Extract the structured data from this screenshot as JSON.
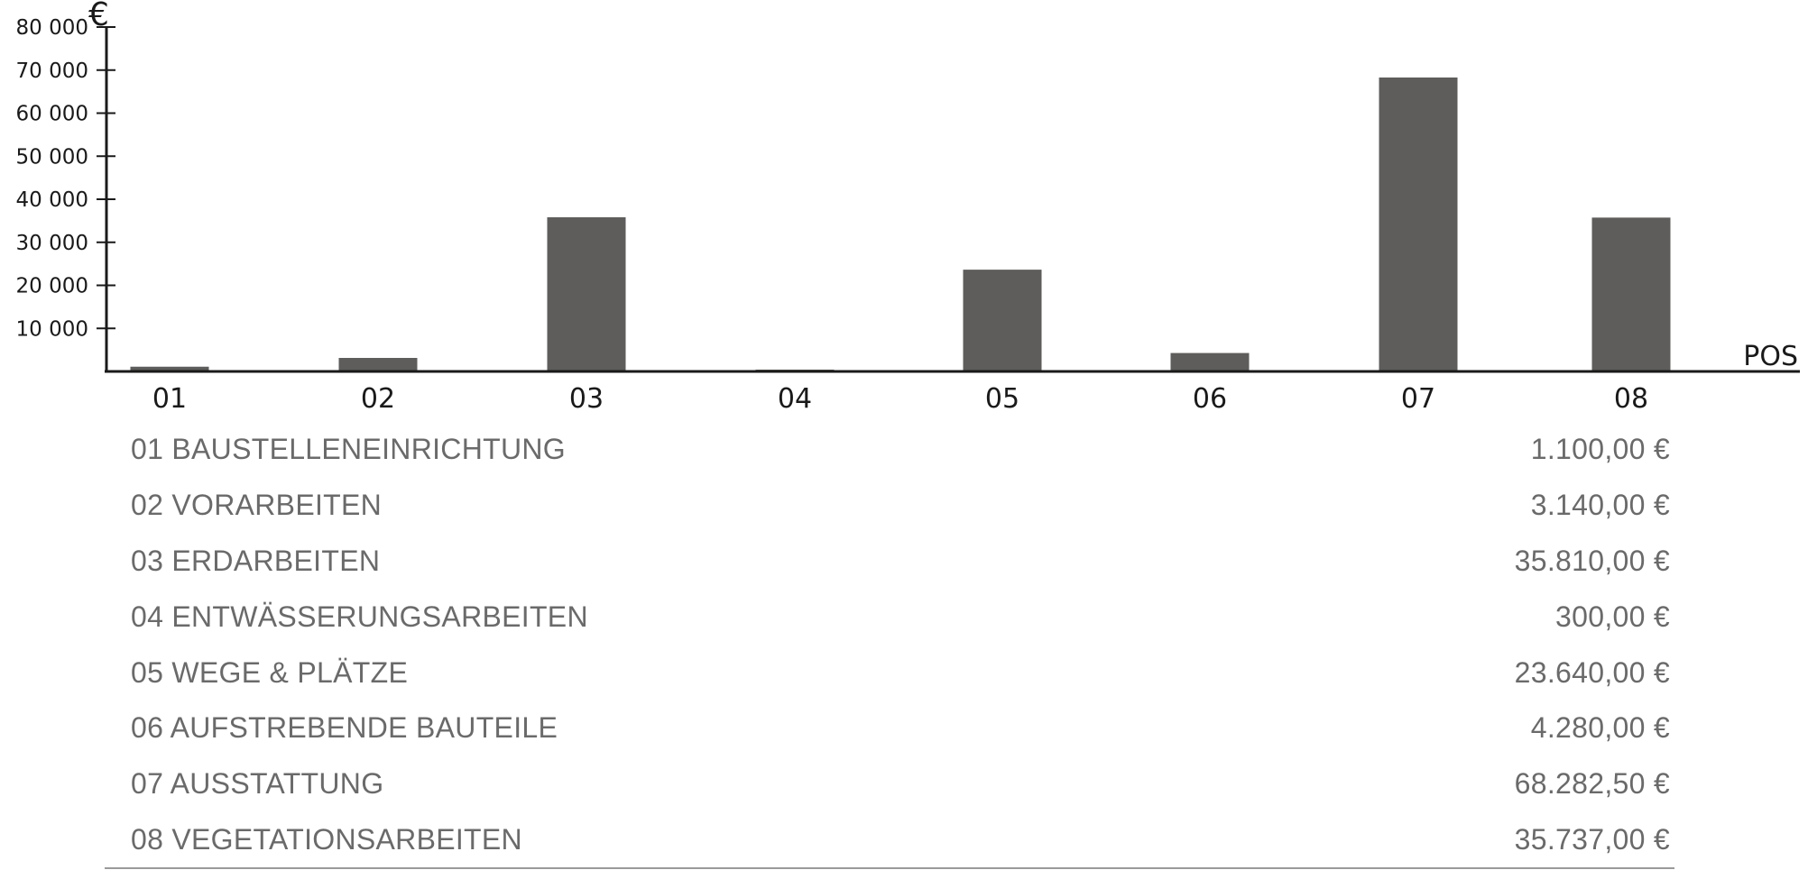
{
  "chart_data": {
    "type": "bar",
    "y_unit": "€",
    "x_axis_label": "POS",
    "categories": [
      "01",
      "02",
      "03",
      "04",
      "05",
      "06",
      "07",
      "08"
    ],
    "values": [
      1100,
      3140,
      35810,
      300,
      23640,
      4280,
      68282.5,
      35737
    ],
    "y_ticks": [
      "10 000",
      "20 000",
      "30 000",
      "40 000",
      "50 000",
      "60 000",
      "70 000",
      "80 000"
    ],
    "ylim": [
      0,
      80000
    ],
    "bar_color": "#5e5d5b",
    "grid": false
  },
  "items": [
    {
      "label": "01 BAUSTELLENEINRICHTUNG",
      "amount": "1.100,00 €"
    },
    {
      "label": "02 VORARBEITEN",
      "amount": "3.140,00 €"
    },
    {
      "label": "03 ERDARBEITEN",
      "amount": "35.810,00 €"
    },
    {
      "label": "04 ENTWÄSSERUNGSARBEITEN",
      "amount": "300,00 €"
    },
    {
      "label": "05 WEGE & PLÄTZE",
      "amount": "23.640,00 €"
    },
    {
      "label": "06 AUFSTREBENDE BAUTEILE",
      "amount": "4.280,00 €"
    },
    {
      "label": "07 AUSSTATTUNG",
      "amount": "68.282,50 €"
    },
    {
      "label": "08 VEGETATIONSARBEITEN",
      "amount": "35.737,00 €"
    }
  ]
}
